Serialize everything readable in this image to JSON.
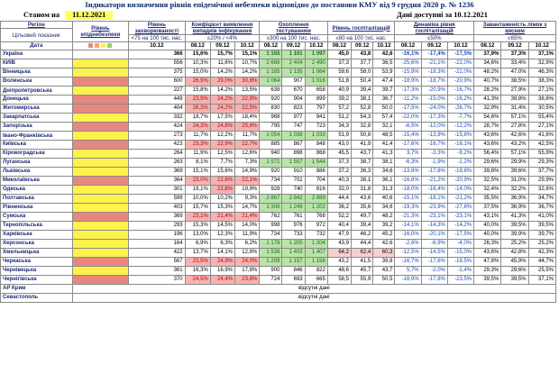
{
  "title": "Індикатори визначення рівнів епідемічної небезпеки відповідно до постанови КМУ від 9 грудня 2020 р. № 1236",
  "stan_label": "Станом на",
  "stan_date": "11.12.2021",
  "avail_text": "Дані доступні за 10.12.2021",
  "headers": {
    "region": "Регіон",
    "indicator": "Цільовий показник",
    "date_label": "Дата",
    "level": "Рівень епіднебезпеки",
    "incidence": "Рівень захворюваності",
    "incidence_target": "<75 на 100 тис. нас.",
    "incidence_date": "10.12",
    "detect": "Коефіцієнт виявлення випадків інфікування",
    "detect_target": "≤20% / <4%",
    "testing": "Охоплення тестуванням",
    "testing_target": "≥300 на 100 тис. нас.",
    "hosp": "Рівень госпіталізацій",
    "hosp_target": "≤60 на 100 тис. нас.",
    "dyn": "Динаміка рівня госпіталізацій",
    "dyn_target": "≤50%",
    "beds": "Завантаженість ліжок з киснем",
    "beds_target": "≤65%",
    "d1": "08.12",
    "d2": "09.12",
    "d3": "10.12"
  },
  "swatch_colors": [
    "#e8877f",
    "#f7a65a",
    "#fff24d",
    "#8fd36b"
  ],
  "rows": [
    {
      "region": "Україна",
      "level": "",
      "inc": "366",
      "det": [
        "15,6%",
        "15,7%",
        "15,1%"
      ],
      "tst": [
        "1 155",
        "1 101",
        "1 097"
      ],
      "hosp": [
        "45,0",
        "43,8",
        "42,6"
      ],
      "dyn": [
        "-16,1%",
        "-17,4%",
        "-17,5%"
      ],
      "beds": [
        "37,9%",
        "37,3%",
        "37,1%"
      ]
    },
    {
      "region": "КИЇВ",
      "level": "y",
      "inc": "556",
      "det": [
        "10,3%",
        "11,6%",
        "10,7%"
      ],
      "tst": [
        "2 686",
        "2 404",
        "2 490"
      ],
      "hosp": [
        "37,3",
        "37,7",
        "36,5"
      ],
      "dyn": [
        "-25,6%",
        "-21,1%",
        "-22,0%"
      ],
      "beds": [
        "34,6%",
        "33,4%",
        "32,9%"
      ]
    },
    {
      "region": "Вінницька",
      "level": "y",
      "inc": "375",
      "det": [
        "15,0%",
        "14,2%",
        "14,2%"
      ],
      "tst": [
        "1 185",
        "1 135",
        "1 064"
      ],
      "hosp": [
        "59,6",
        "58,0",
        "53,9"
      ],
      "dyn": [
        "-15,9%",
        "-18,3%",
        "-22,0%"
      ],
      "beds": [
        "48,2%",
        "47,0%",
        "46,3%"
      ]
    },
    {
      "region": "Волинська",
      "level": "r",
      "inc": "600",
      "det": [
        "26,9%",
        "29,0%",
        "30,8%"
      ],
      "tst": [
        "1 064",
        "907",
        "1 016"
      ],
      "hosp": [
        "51,8",
        "50,4",
        "47,4"
      ],
      "dyn": [
        "-18,9%",
        "-18,7%",
        "-20,9%"
      ],
      "beds": [
        "40,7%",
        "38,5%",
        "38,3%"
      ]
    },
    {
      "region": "Дніпропетровська",
      "level": "y",
      "inc": "227",
      "det": [
        "15,8%",
        "14,2%",
        "13,5%"
      ],
      "tst": [
        "638",
        "670",
        "658"
      ],
      "hosp": [
        "40,9",
        "39,4",
        "39,7"
      ],
      "dyn": [
        "-17,3%",
        "-20,9%",
        "-16,7%"
      ],
      "beds": [
        "28,2%",
        "27,9%",
        "27,1%"
      ]
    },
    {
      "region": "Донецька",
      "level": "r",
      "inc": "449",
      "det": [
        "23,9%",
        "24,2%",
        "22,9%"
      ],
      "tst": [
        "920",
        "904",
        "899"
      ],
      "hosp": [
        "39,2",
        "38,1",
        "36,7"
      ],
      "dyn": [
        "-11,2%",
        "-15,0%",
        "-16,2%"
      ],
      "beds": [
        "41,3%",
        "39,8%",
        "38,6%"
      ]
    },
    {
      "region": "Житомирська",
      "level": "r",
      "inc": "404",
      "det": [
        "26,3%",
        "24,2%",
        "22,5%"
      ],
      "tst": [
        "830",
        "823",
        "797"
      ],
      "hosp": [
        "57,2",
        "52,8",
        "50,0"
      ],
      "dyn": [
        "-17,5%",
        "-24,0%",
        "-26,7%"
      ],
      "beds": [
        "32,9%",
        "31,4%",
        "30,5%"
      ]
    },
    {
      "region": "Закарпатська",
      "level": "y",
      "inc": "332",
      "det": [
        "18,7%",
        "17,5%",
        "18,4%"
      ],
      "tst": [
        "968",
        "977",
        "941"
      ],
      "hosp": [
        "51,2",
        "54,3",
        "57,4"
      ],
      "dyn": [
        "-22,0%",
        "-17,3%",
        "-7,7%"
      ],
      "beds": [
        "54,6%",
        "57,1%",
        "55,4%"
      ]
    },
    {
      "region": "Запорізька",
      "level": "r",
      "inc": "424",
      "det": [
        "24,3%",
        "24,8%",
        "25,8%"
      ],
      "tst": [
        "795",
        "747",
        "723"
      ],
      "hosp": [
        "34,3",
        "32,8",
        "32,1"
      ],
      "dyn": [
        "-6,5%",
        "-12,0%",
        "-12,2%"
      ],
      "beds": [
        "28,7%",
        "27,8%",
        "27,1%"
      ]
    },
    {
      "region": "Івано-Франківська",
      "level": "y",
      "inc": "273",
      "det": [
        "11,7%",
        "12,2%",
        "11,7%"
      ],
      "tst": [
        "1 054",
        "1 038",
        "1 033"
      ],
      "hosp": [
        "51,9",
        "50,8",
        "48,5"
      ],
      "dyn": [
        "-15,4%",
        "-13,9%",
        "-15,8%"
      ],
      "beds": [
        "43,6%",
        "42,6%",
        "41,6%"
      ]
    },
    {
      "region": "Київська",
      "level": "r",
      "inc": "423",
      "det": [
        "23,3%",
        "22,9%",
        "22,7%"
      ],
      "tst": [
        "885",
        "867",
        "848"
      ],
      "hosp": [
        "43,0",
        "41,9",
        "41,4"
      ],
      "dyn": [
        "-17,6%",
        "-16,7%",
        "-16,1%"
      ],
      "beds": [
        "43,6%",
        "43,2%",
        "42,5%"
      ]
    },
    {
      "region": "Кіровоградська",
      "level": "y",
      "inc": "264",
      "det": [
        "11,9%",
        "12,5%",
        "12,6%"
      ],
      "tst": [
        "940",
        "898",
        "868"
      ],
      "hosp": [
        "45,5",
        "43,7",
        "41,3"
      ],
      "dyn": [
        "3,7%",
        "-3,3%",
        "-9,2%"
      ],
      "beds": [
        "56,4%",
        "57,1%",
        "55,9%"
      ]
    },
    {
      "region": "Луганська",
      "level": "y",
      "inc": "263",
      "det": [
        "8,1%",
        "7,7%",
        "7,3%"
      ],
      "tst": [
        "1 571",
        "1 557",
        "1 544"
      ],
      "hosp": [
        "37,3",
        "38,7",
        "38,1"
      ],
      "dyn": [
        "-6,3%",
        "-1,9%",
        "-1,2%"
      ],
      "beds": [
        "29,6%",
        "29,9%",
        "29,3%"
      ]
    },
    {
      "region": "Львівська",
      "level": "y",
      "inc": "369",
      "det": [
        "15,1%",
        "15,6%",
        "14,9%"
      ],
      "tst": [
        "920",
        "910",
        "886"
      ],
      "hosp": [
        "37,2",
        "36,3",
        "34,6"
      ],
      "dyn": [
        "-13,8%",
        "-17,8%",
        "-19,8%"
      ],
      "beds": [
        "39,8%",
        "39,6%",
        "37,7%"
      ]
    },
    {
      "region": "Миколаївська",
      "level": "r",
      "inc": "364",
      "det": [
        "23,0%",
        "22,6%",
        "22,1%"
      ],
      "tst": [
        "734",
        "702",
        "704"
      ],
      "hosp": [
        "40,3",
        "38,1",
        "36,1"
      ],
      "dyn": [
        "-16,8%",
        "-21,2%",
        "-20,9%"
      ],
      "beds": [
        "32,5%",
        "31,0%",
        "29,9%"
      ]
    },
    {
      "region": "Одеська",
      "level": "y",
      "inc": "301",
      "det": [
        "19,1%",
        "22,8%",
        "19,9%"
      ],
      "tst": [
        "928",
        "740",
        "816"
      ],
      "hosp": [
        "32,0",
        "31,8",
        "31,3"
      ],
      "dyn": [
        "-18,0%",
        "-16,4%",
        "-14,0%"
      ],
      "beds": [
        "32,4%",
        "32,2%",
        "32,6%"
      ]
    },
    {
      "region": "Полтавська",
      "level": "y",
      "inc": "599",
      "det": [
        "10,0%",
        "10,2%",
        "9,3%"
      ],
      "tst": [
        "2 867",
        "2 842",
        "2 889"
      ],
      "hosp": [
        "44,4",
        "43,6",
        "40,6"
      ],
      "dyn": [
        "-15,1%",
        "-18,1%",
        "-21,2%"
      ],
      "beds": [
        "35,5%",
        "36,9%",
        "34,7%"
      ]
    },
    {
      "region": "Рівненська",
      "level": "y",
      "inc": "403",
      "det": [
        "15,7%",
        "15,3%",
        "14,7%"
      ],
      "tst": [
        "1 306",
        "1 249",
        "1 202"
      ],
      "hosp": [
        "36,2",
        "35,6",
        "34,6"
      ],
      "dyn": [
        "-19,3%",
        "-23,9%",
        "-27,8%"
      ],
      "beds": [
        "37,5%",
        "36,9%",
        "36,7%"
      ]
    },
    {
      "region": "Сумська",
      "level": "r",
      "inc": "369",
      "det": [
        "23,1%",
        "21,4%",
        "21,4%"
      ],
      "tst": [
        "762",
        "761",
        "768"
      ],
      "hosp": [
        "52,2",
        "49,7",
        "48,2"
      ],
      "dyn": [
        "-21,3%",
        "-23,1%",
        "-23,1%"
      ],
      "beds": [
        "43,1%",
        "41,3%",
        "41,0%"
      ]
    },
    {
      "region": "Тернопільська",
      "level": "y",
      "inc": "293",
      "det": [
        "15,3%",
        "14,5%",
        "14,0%"
      ],
      "tst": [
        "998",
        "976",
        "972"
      ],
      "hosp": [
        "40,4",
        "39,4",
        "39,2"
      ],
      "dyn": [
        "-14,1%",
        "-14,3%",
        "-14,2%"
      ],
      "beds": [
        "40,0%",
        "39,5%",
        "39,5%"
      ]
    },
    {
      "region": "Харківська",
      "level": "y",
      "inc": "196",
      "det": [
        "13,0%",
        "12,3%",
        "11,9%"
      ],
      "tst": [
        "734",
        "733",
        "732"
      ],
      "hosp": [
        "47,9",
        "46,2",
        "45,2"
      ],
      "dyn": [
        "-16,0%",
        "-20,1%",
        "-17,5%"
      ],
      "beds": [
        "40,0%",
        "39,9%",
        "39,7%"
      ]
    },
    {
      "region": "Херсонська",
      "level": "y",
      "inc": "164",
      "det": [
        "6,9%",
        "6,3%",
        "6,2%"
      ],
      "tst": [
        "1 178",
        "1 205",
        "1 204"
      ],
      "hosp": [
        "43,9",
        "44,4",
        "42,6"
      ],
      "dyn": [
        "-2,6%",
        "-6,9%",
        "-4,0%"
      ],
      "beds": [
        "26,3%",
        "25,2%",
        "25,2%"
      ]
    },
    {
      "region": "Хмельницька",
      "level": "y",
      "inc": "422",
      "det": [
        "13,7%",
        "14,1%",
        "12,8%"
      ],
      "tst": [
        "1 536",
        "1 403",
        "1 407"
      ],
      "hosp": [
        "64,2",
        "62,4",
        "60,3"
      ],
      "dyn": [
        "-12,5%",
        "-14,5%",
        "-15,0%"
      ],
      "beds": [
        "43,6%",
        "42,8%",
        "42,3%"
      ],
      "hospHigh": true
    },
    {
      "region": "Черкаська",
      "level": "r",
      "inc": "567",
      "det": [
        "23,5%",
        "24,9%",
        "24,0%"
      ],
      "tst": [
        "1 209",
        "1 157",
        "1 156"
      ],
      "hosp": [
        "43,2",
        "41,5",
        "39,8"
      ],
      "dyn": [
        "-16,7%",
        "-17,6%",
        "-19,5%"
      ],
      "beds": [
        "47,8%",
        "45,9%",
        "44,7%"
      ]
    },
    {
      "region": "Чернівецька",
      "level": "y",
      "inc": "361",
      "det": [
        "16,3%",
        "16,9%",
        "17,8%"
      ],
      "tst": [
        "900",
        "846",
        "822"
      ],
      "hosp": [
        "48,6",
        "45,7",
        "43,7"
      ],
      "dyn": [
        "5,7%",
        "-2,0%",
        "-1,4%"
      ],
      "beds": [
        "29,3%",
        "29,6%",
        "25,5%"
      ]
    },
    {
      "region": "Чернігівська",
      "level": "r",
      "inc": "370",
      "det": [
        "24,5%",
        "24,4%",
        "23,8%"
      ],
      "tst": [
        "724",
        "693",
        "665"
      ],
      "hosp": [
        "58,5",
        "55,9",
        "50,5"
      ],
      "dyn": [
        "-16,9%",
        "-17,8%",
        "-23,5%"
      ],
      "beds": [
        "39,5%",
        "39,5%",
        "37,1%"
      ]
    }
  ],
  "nodata_rows": [
    {
      "region": "АР Крим",
      "text": "відсутні дані"
    },
    {
      "region": "Севастополь",
      "text": "відсутні дані"
    }
  ]
}
